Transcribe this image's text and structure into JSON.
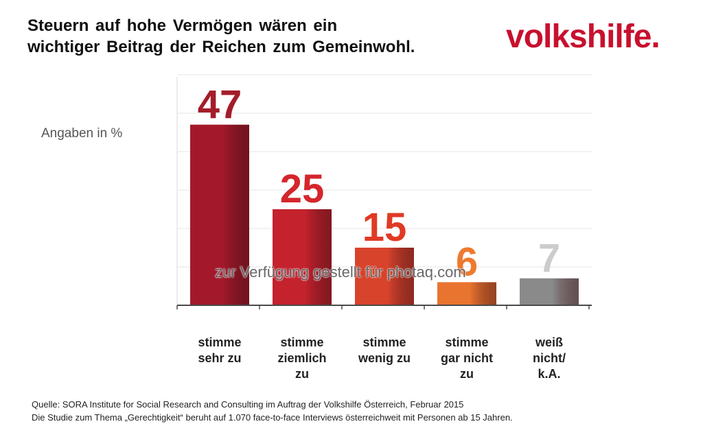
{
  "title": {
    "line1": "Steuern auf hohe Vermögen wären ein",
    "line2": "wichtiger Beitrag der Reichen zum Gemeinwohl."
  },
  "logo": {
    "text": "volkshilfe."
  },
  "watermark": "zur Verfügung gestellt für photaq.com",
  "footer": {
    "line1": "Quelle: SORA Institute for Social Research and Consulting im Auftrag der Volkshilfe Österreich, Februar 2015",
    "line2": "Die Studie zum Thema „Gerechtigkeit“ beruht auf 1.070 face-to-face Interviews österreichweit mit Personen ab 15 Jahren."
  },
  "chart_data": {
    "type": "bar",
    "title": "Steuern auf hohe Vermögen wären ein wichtiger Beitrag der Reichen zum Gemeinwohl.",
    "ylabel": "Angaben in %",
    "xlabel": "",
    "ylim": [
      0,
      60
    ],
    "grid": true,
    "categories": [
      [
        "stimme",
        "sehr zu"
      ],
      [
        "stimme",
        "ziemlich",
        "zu"
      ],
      [
        "stimme",
        "wenig zu"
      ],
      [
        "stimme",
        "gar nicht",
        "zu"
      ],
      [
        "weiß",
        "nicht/",
        "k.A."
      ]
    ],
    "values": [
      47,
      25,
      15,
      6,
      7
    ],
    "colors": [
      "#a3192b",
      "#c4222d",
      "#d8432c",
      "#e8742f",
      "#8a8a8a"
    ],
    "label_colors": [
      "#a31d2a",
      "#d4262c",
      "#e03a24",
      "#ee7a30",
      "#cccccc"
    ]
  }
}
